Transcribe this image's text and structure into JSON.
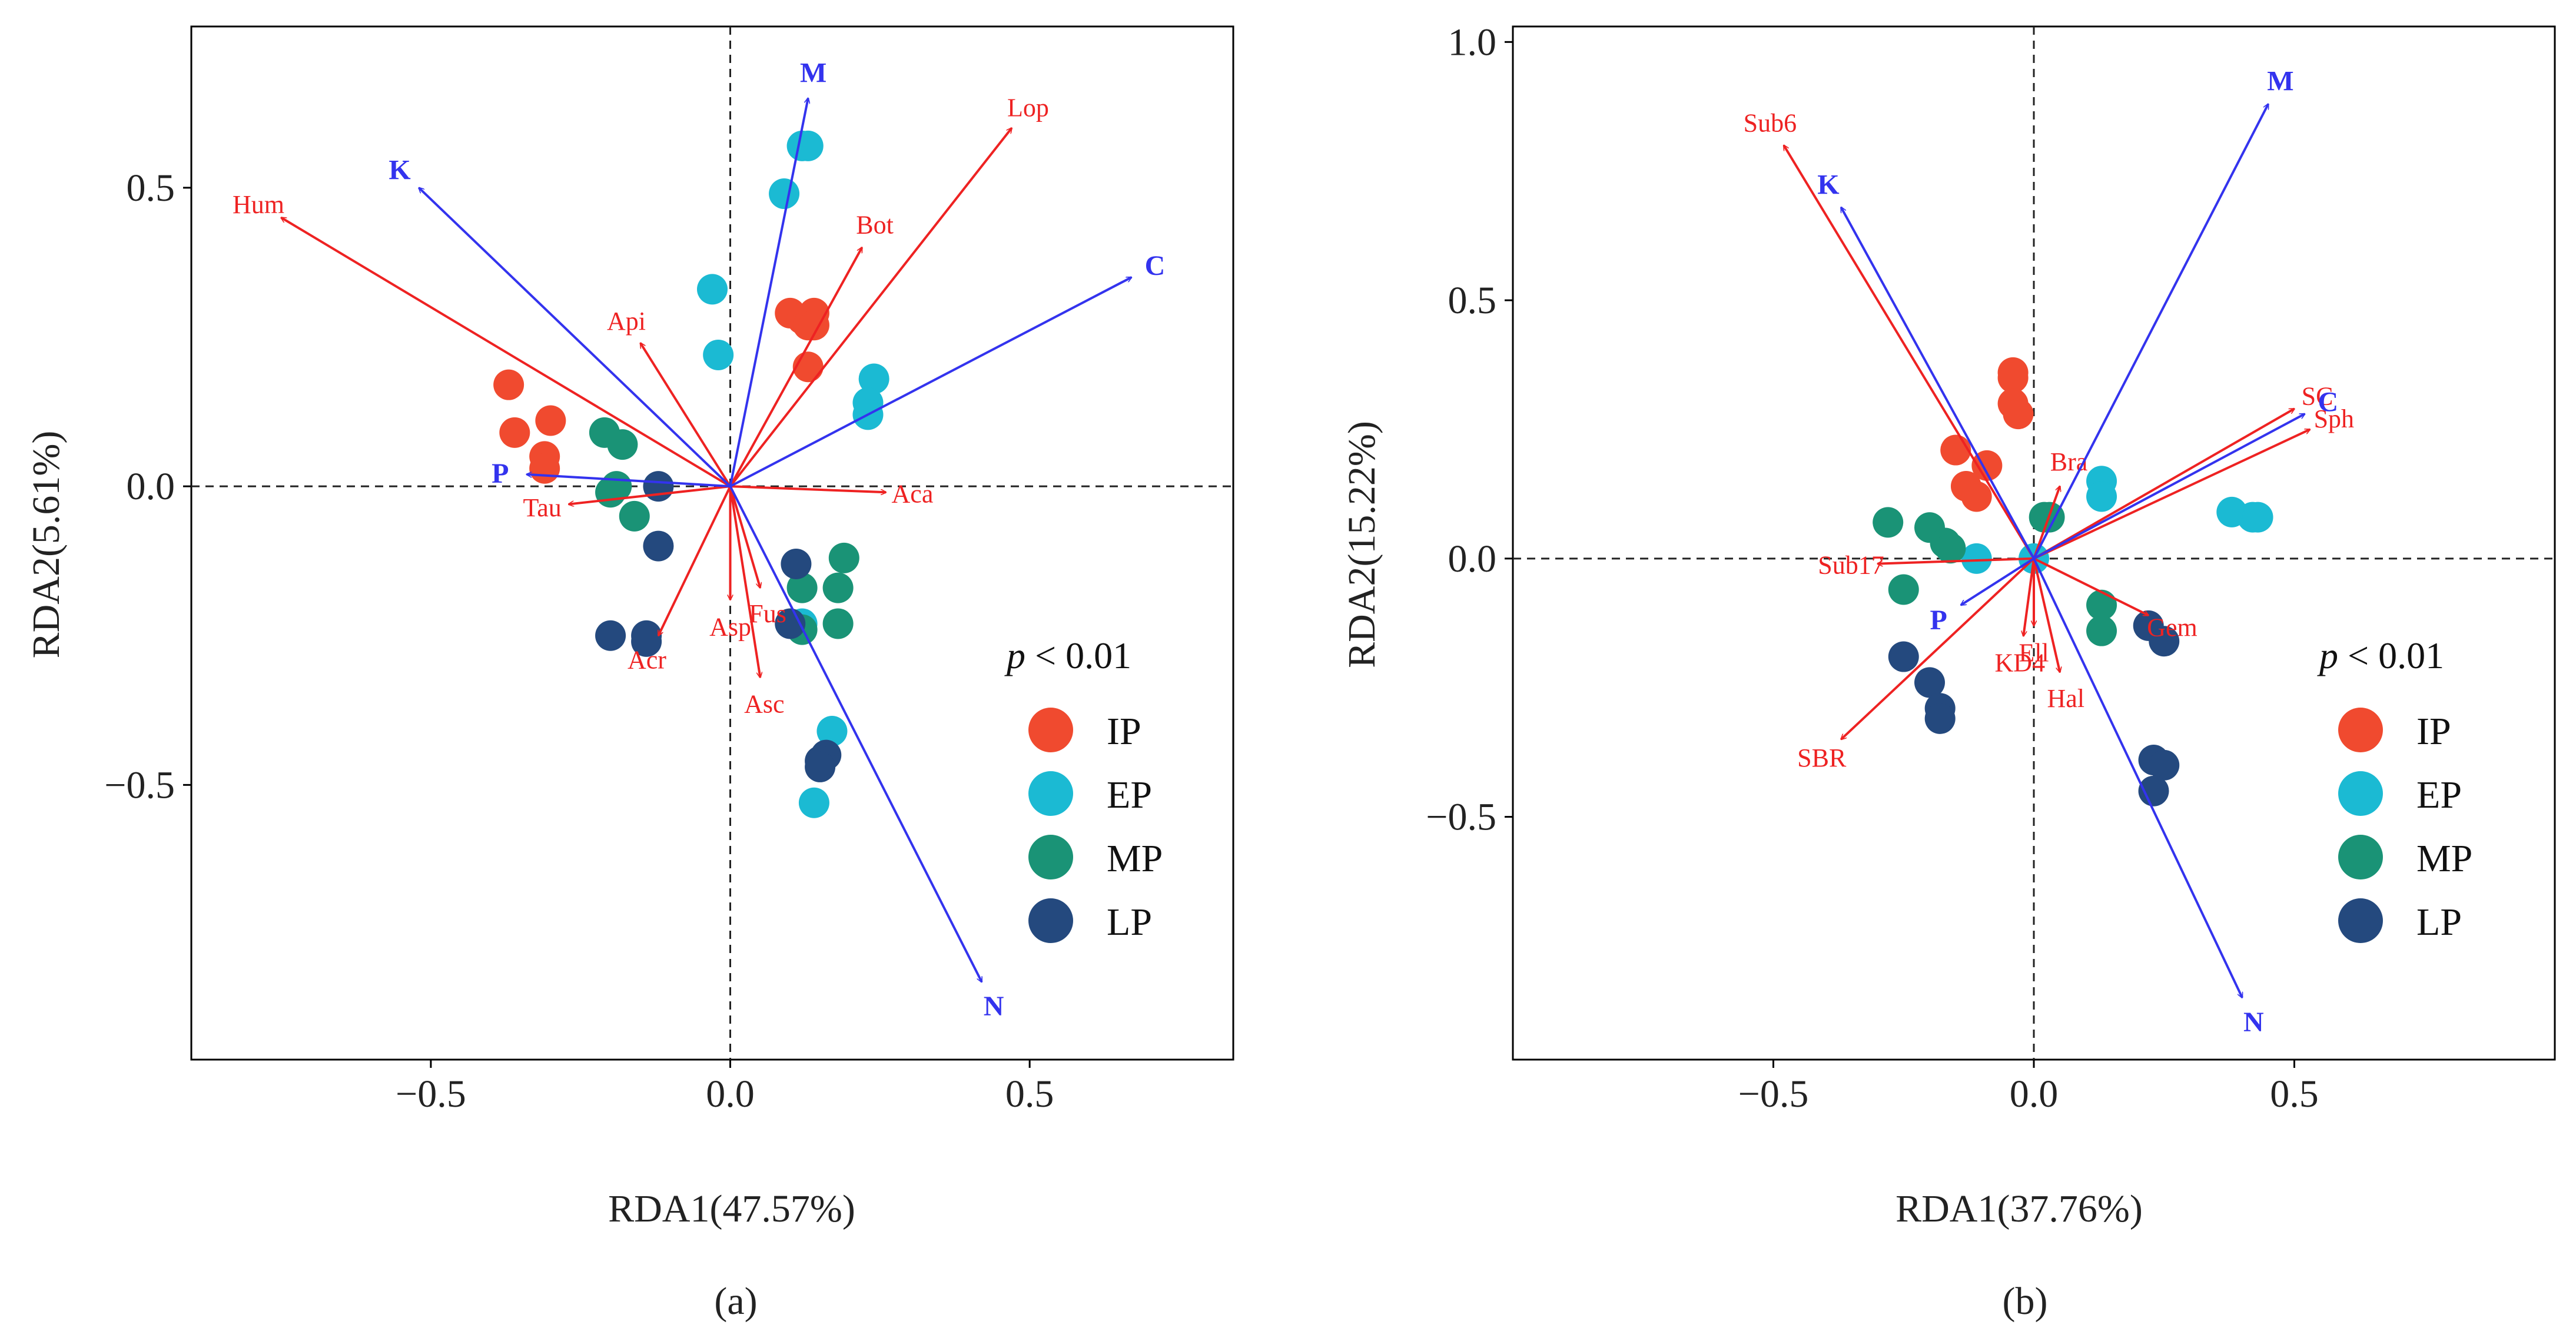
{
  "chart_data": [
    {
      "type": "scatter",
      "panel_label": "(a)",
      "xlabel": "RDA1(47.57%)",
      "ylabel": "RDA2(5.61%)",
      "xlim": [
        -0.9,
        0.84
      ],
      "ylim": [
        -0.96,
        0.77
      ],
      "xticks": [
        -0.5,
        0.0,
        0.5
      ],
      "yticks": [
        -0.5,
        0.0,
        0.5
      ],
      "xtick_labels": [
        "−0.5",
        "0.0",
        "0.5"
      ],
      "ytick_labels": [
        "−0.5",
        "0.0",
        "0.5"
      ],
      "grid": false,
      "significance": {
        "prefix": "p",
        "text": " < 0.01"
      },
      "legend": {
        "placement": "bottom-right",
        "entries": [
          "IP",
          "EP",
          "MP",
          "LP"
        ]
      },
      "groups": [
        {
          "name": "IP",
          "color": "#F04A2F",
          "points": [
            [
              -0.37,
              0.17
            ],
            [
              -0.36,
              0.09
            ],
            [
              -0.3,
              0.11
            ],
            [
              -0.31,
              0.05
            ],
            [
              -0.31,
              0.03
            ],
            [
              0.1,
              0.29
            ],
            [
              0.12,
              0.28
            ],
            [
              0.13,
              0.27
            ],
            [
              0.14,
              0.29
            ],
            [
              0.14,
              0.27
            ],
            [
              0.13,
              0.2
            ]
          ]
        },
        {
          "name": "EP",
          "color": "#1BBAD3",
          "points": [
            [
              0.12,
              0.57
            ],
            [
              0.13,
              0.57
            ],
            [
              0.09,
              0.49
            ],
            [
              -0.03,
              0.33
            ],
            [
              -0.02,
              0.22
            ],
            [
              0.24,
              0.18
            ],
            [
              0.23,
              0.14
            ],
            [
              0.23,
              0.12
            ],
            [
              0.17,
              -0.41
            ],
            [
              0.14,
              -0.53
            ],
            [
              0.12,
              -0.23
            ]
          ]
        },
        {
          "name": "MP",
          "color": "#1A9376",
          "points": [
            [
              -0.21,
              0.09
            ],
            [
              -0.18,
              0.07
            ],
            [
              -0.19,
              0.0
            ],
            [
              -0.2,
              -0.01
            ],
            [
              -0.16,
              -0.05
            ],
            [
              0.19,
              -0.12
            ],
            [
              0.18,
              -0.17
            ],
            [
              0.12,
              -0.17
            ],
            [
              0.18,
              -0.23
            ],
            [
              0.12,
              -0.24
            ]
          ]
        },
        {
          "name": "LP",
          "color": "#24497E",
          "points": [
            [
              -0.12,
              0.0
            ],
            [
              -0.12,
              -0.1
            ],
            [
              -0.2,
              -0.25
            ],
            [
              -0.14,
              -0.25
            ],
            [
              -0.14,
              -0.26
            ],
            [
              0.11,
              -0.13
            ],
            [
              0.1,
              -0.23
            ],
            [
              0.16,
              -0.45
            ],
            [
              0.15,
              -0.46
            ],
            [
              0.15,
              -0.47
            ]
          ]
        }
      ],
      "env_vectors": {
        "color": "#3333EE",
        "items": [
          {
            "label": "M",
            "x": 0.13,
            "y": 0.65
          },
          {
            "label": "K",
            "x": -0.52,
            "y": 0.5
          },
          {
            "label": "C",
            "x": 0.67,
            "y": 0.35
          },
          {
            "label": "P",
            "x": -0.34,
            "y": 0.02
          },
          {
            "label": "N",
            "x": 0.42,
            "y": -0.83
          }
        ]
      },
      "taxa_vectors": {
        "color": "#EE2222",
        "items": [
          {
            "label": "Lop",
            "x": 0.47,
            "y": 0.6
          },
          {
            "label": "Bot",
            "x": 0.22,
            "y": 0.4
          },
          {
            "label": "Hum",
            "x": -0.75,
            "y": 0.45
          },
          {
            "label": "Api",
            "x": -0.15,
            "y": 0.24
          },
          {
            "label": "Tau",
            "x": -0.27,
            "y": -0.03
          },
          {
            "label": "Aca",
            "x": 0.26,
            "y": -0.01
          },
          {
            "label": "Fus",
            "x": 0.05,
            "y": -0.17
          },
          {
            "label": "Asp",
            "x": 0.0,
            "y": -0.19
          },
          {
            "label": "Acr",
            "x": -0.12,
            "y": -0.25
          },
          {
            "label": "Asc",
            "x": 0.05,
            "y": -0.32
          }
        ]
      }
    },
    {
      "type": "scatter",
      "panel_label": "(b)",
      "xlabel": "RDA1(37.76%)",
      "ylabel": "RDA2(15.22%)",
      "xlim": [
        -1.0,
        1.0
      ],
      "ylim": [
        -0.97,
        1.03
      ],
      "xticks": [
        -0.5,
        0.0,
        0.5
      ],
      "yticks": [
        -0.5,
        0.0,
        0.5,
        1.0
      ],
      "xtick_labels": [
        "−0.5",
        "0.0",
        "0.5"
      ],
      "ytick_labels": [
        "−0.5",
        "0.0",
        "0.5",
        "1.0"
      ],
      "grid": false,
      "significance": {
        "prefix": "p",
        "text": " < 0.01"
      },
      "legend": {
        "placement": "bottom-right",
        "entries": [
          "IP",
          "EP",
          "MP",
          "LP"
        ]
      },
      "groups": [
        {
          "name": "IP",
          "color": "#F04A2F",
          "points": [
            [
              -0.04,
              0.36
            ],
            [
              -0.04,
              0.35
            ],
            [
              -0.04,
              0.3
            ],
            [
              -0.03,
              0.28
            ],
            [
              -0.09,
              0.18
            ],
            [
              -0.15,
              0.21
            ],
            [
              -0.13,
              0.14
            ],
            [
              -0.11,
              0.12
            ]
          ]
        },
        {
          "name": "EP",
          "color": "#1BBAD3",
          "points": [
            [
              0.13,
              0.15
            ],
            [
              0.13,
              0.12
            ],
            [
              0.38,
              0.09
            ],
            [
              0.42,
              0.08
            ],
            [
              0.43,
              0.08
            ],
            [
              0.0,
              0.0
            ],
            [
              -0.11,
              0.0
            ]
          ]
        },
        {
          "name": "MP",
          "color": "#1A9376",
          "points": [
            [
              -0.28,
              0.07
            ],
            [
              -0.2,
              0.06
            ],
            [
              -0.17,
              0.03
            ],
            [
              -0.16,
              0.02
            ],
            [
              -0.25,
              -0.06
            ],
            [
              0.02,
              0.08
            ],
            [
              0.03,
              0.08
            ],
            [
              0.13,
              -0.09
            ],
            [
              0.13,
              -0.14
            ]
          ]
        },
        {
          "name": "LP",
          "color": "#24497E",
          "points": [
            [
              -0.25,
              -0.19
            ],
            [
              -0.2,
              -0.24
            ],
            [
              -0.18,
              -0.29
            ],
            [
              -0.18,
              -0.31
            ],
            [
              0.22,
              -0.13
            ],
            [
              0.25,
              -0.16
            ],
            [
              0.23,
              -0.39
            ],
            [
              0.25,
              -0.4
            ],
            [
              0.23,
              -0.45
            ]
          ]
        }
      ],
      "env_vectors": {
        "color": "#3333EE",
        "items": [
          {
            "label": "M",
            "x": 0.45,
            "y": 0.88
          },
          {
            "label": "K",
            "x": -0.37,
            "y": 0.68
          },
          {
            "label": "C",
            "x": 0.52,
            "y": 0.28
          },
          {
            "label": "P",
            "x": -0.14,
            "y": -0.09
          },
          {
            "label": "N",
            "x": 0.4,
            "y": -0.85
          }
        ]
      },
      "taxa_vectors": {
        "color": "#EE2222",
        "items": [
          {
            "label": "Sub6",
            "x": -0.48,
            "y": 0.8
          },
          {
            "label": "SC",
            "x": 0.5,
            "y": 0.29
          },
          {
            "label": "Sph",
            "x": 0.53,
            "y": 0.25
          },
          {
            "label": "Bra",
            "x": 0.05,
            "y": 0.14
          },
          {
            "label": "Sub17",
            "x": -0.3,
            "y": -0.01
          },
          {
            "label": "Ell",
            "x": 0.0,
            "y": -0.13
          },
          {
            "label": "KD4",
            "x": -0.02,
            "y": -0.15
          },
          {
            "label": "Gem",
            "x": 0.22,
            "y": -0.11
          },
          {
            "label": "Hal",
            "x": 0.05,
            "y": -0.22
          },
          {
            "label": "SBR",
            "x": -0.37,
            "y": -0.35
          }
        ]
      }
    }
  ]
}
